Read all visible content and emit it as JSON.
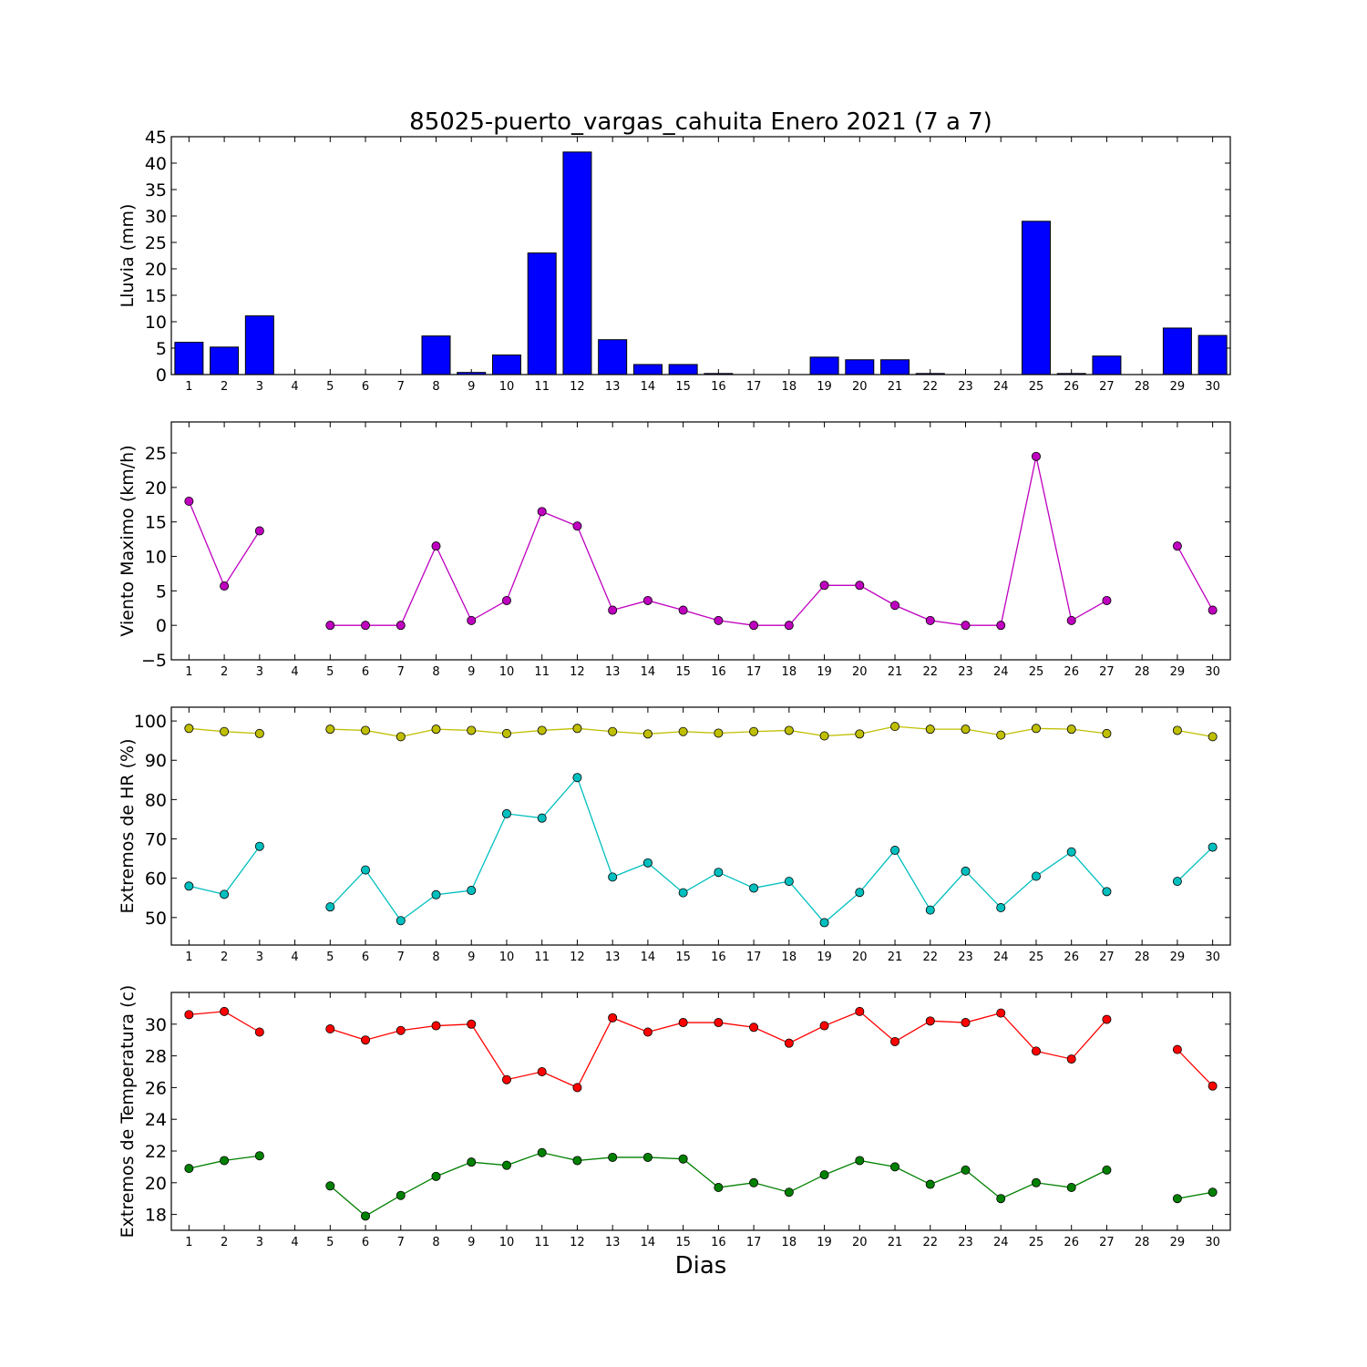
{
  "title": "85025-puerto_vargas_cahuita Enero 2021  (7 a 7)",
  "xlabel": "Dias",
  "chart_data": [
    {
      "type": "bar",
      "ylabel": "Lluvia (mm)",
      "ylim": [
        0,
        45
      ],
      "yticks": [
        0,
        5,
        10,
        15,
        20,
        25,
        30,
        35,
        40,
        45
      ],
      "x": [
        1,
        2,
        3,
        4,
        5,
        6,
        7,
        8,
        9,
        10,
        11,
        12,
        13,
        14,
        15,
        16,
        17,
        18,
        19,
        20,
        21,
        22,
        23,
        24,
        25,
        26,
        27,
        28,
        29,
        30
      ],
      "values": [
        6.1,
        5.2,
        11.1,
        0,
        0,
        0,
        0,
        7.3,
        0.4,
        3.7,
        23.0,
        42.1,
        6.6,
        1.9,
        1.9,
        0.2,
        0,
        0,
        3.3,
        2.8,
        2.8,
        0.2,
        0,
        0,
        29.0,
        0.2,
        3.5,
        0,
        8.8,
        7.4
      ],
      "color": "#0000ff"
    },
    {
      "type": "line",
      "ylabel": "Viento Maximo (km/h)",
      "ylim": [
        -5,
        29.5
      ],
      "yticks": [
        -5,
        0,
        5,
        10,
        15,
        20,
        25
      ],
      "x": [
        1,
        2,
        3,
        4,
        5,
        6,
        7,
        8,
        9,
        10,
        11,
        12,
        13,
        14,
        15,
        16,
        17,
        18,
        19,
        20,
        21,
        22,
        23,
        24,
        25,
        26,
        27,
        28,
        29,
        30
      ],
      "series": [
        {
          "color": "#bf00bf",
          "values": [
            18.0,
            5.7,
            13.7,
            null,
            0,
            0,
            0,
            11.5,
            0.7,
            3.6,
            16.5,
            14.4,
            2.2,
            3.6,
            2.2,
            0.7,
            0,
            0,
            5.8,
            5.8,
            2.9,
            0.7,
            0,
            0,
            24.5,
            0.7,
            3.6,
            null,
            11.5,
            2.2
          ]
        }
      ]
    },
    {
      "type": "line",
      "ylabel": "Extremos de HR (%)",
      "ylim": [
        43,
        103.5
      ],
      "yticks": [
        50,
        60,
        70,
        80,
        90,
        100
      ],
      "x": [
        1,
        2,
        3,
        4,
        5,
        6,
        7,
        8,
        9,
        10,
        11,
        12,
        13,
        14,
        15,
        16,
        17,
        18,
        19,
        20,
        21,
        22,
        23,
        24,
        25,
        26,
        27,
        28,
        29,
        30
      ],
      "series": [
        {
          "color": "#bfbf00",
          "values": [
            98.1,
            97.3,
            96.8,
            null,
            97.9,
            97.6,
            96.0,
            97.9,
            97.6,
            96.8,
            97.6,
            98.1,
            97.3,
            96.7,
            97.3,
            96.9,
            97.3,
            97.6,
            96.2,
            96.7,
            98.6,
            97.9,
            97.9,
            96.4,
            98.1,
            97.9,
            96.8,
            null,
            97.6,
            96.0
          ]
        },
        {
          "color": "#00bfbf",
          "values": [
            58.0,
            55.9,
            68.1,
            null,
            52.7,
            62.1,
            49.2,
            55.8,
            56.9,
            76.4,
            75.3,
            85.6,
            60.3,
            63.9,
            56.3,
            61.5,
            57.5,
            59.2,
            48.7,
            56.4,
            67.1,
            51.9,
            61.8,
            52.5,
            60.5,
            66.7,
            56.6,
            null,
            59.2,
            67.9
          ]
        }
      ]
    },
    {
      "type": "line",
      "ylabel": "Extremos de Temperatura (c)",
      "ylim": [
        17,
        32
      ],
      "yticks": [
        18,
        20,
        22,
        24,
        26,
        28,
        30
      ],
      "x": [
        1,
        2,
        3,
        4,
        5,
        6,
        7,
        8,
        9,
        10,
        11,
        12,
        13,
        14,
        15,
        16,
        17,
        18,
        19,
        20,
        21,
        22,
        23,
        24,
        25,
        26,
        27,
        28,
        29,
        30
      ],
      "series": [
        {
          "color": "#ff0000",
          "values": [
            30.6,
            30.8,
            29.5,
            null,
            29.7,
            29.0,
            29.6,
            29.9,
            30.0,
            26.5,
            27.0,
            26.0,
            30.4,
            29.5,
            30.1,
            30.1,
            29.8,
            28.8,
            29.9,
            30.8,
            28.9,
            30.2,
            30.1,
            30.7,
            28.3,
            27.8,
            30.3,
            null,
            28.4,
            26.1
          ]
        },
        {
          "color": "#008000",
          "values": [
            20.9,
            21.4,
            21.7,
            null,
            19.8,
            17.9,
            19.2,
            20.4,
            21.3,
            21.1,
            21.9,
            21.4,
            21.6,
            21.6,
            21.5,
            19.7,
            20.0,
            19.4,
            20.5,
            21.4,
            21.0,
            19.9,
            20.8,
            19.0,
            20.0,
            19.7,
            20.8,
            null,
            19.0,
            19.4
          ]
        }
      ]
    }
  ]
}
